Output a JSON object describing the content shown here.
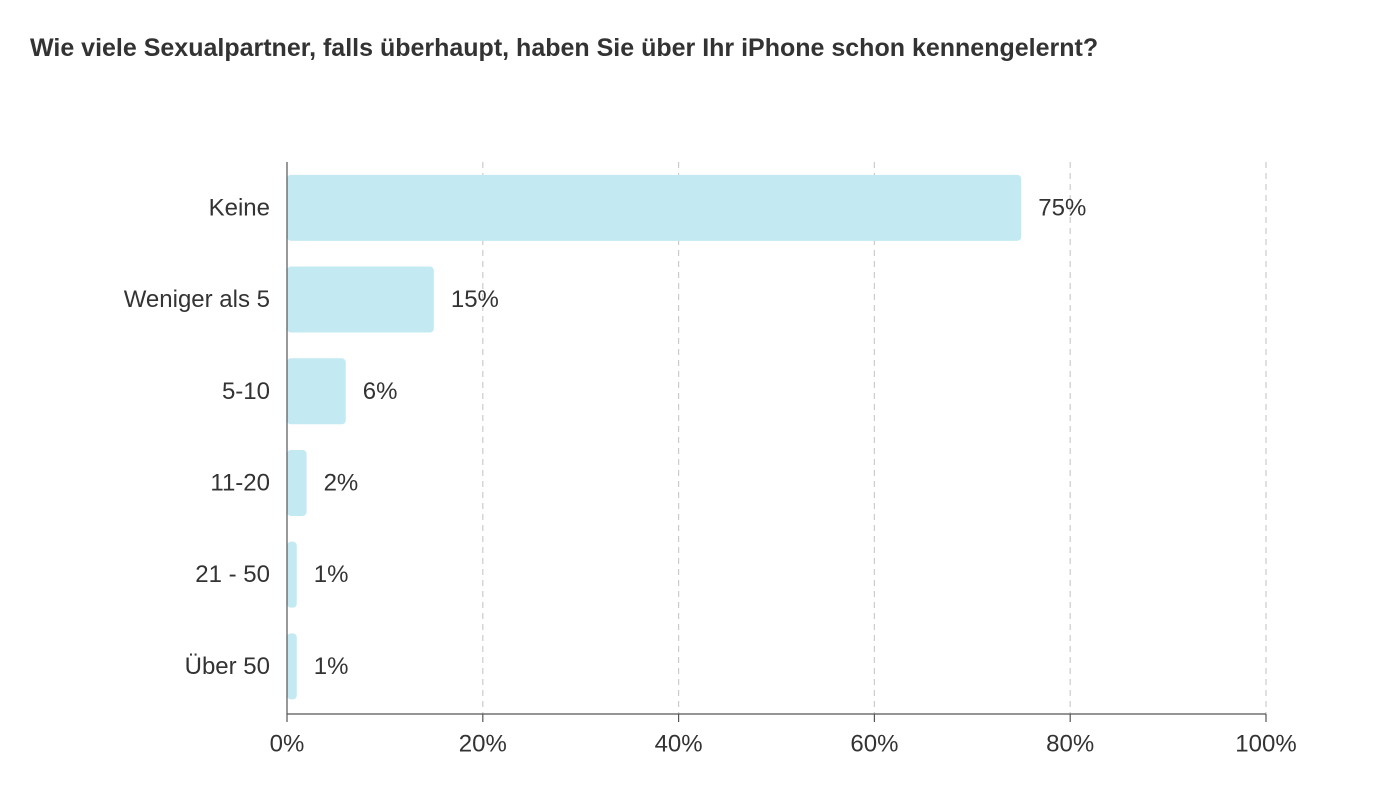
{
  "chart_data": {
    "type": "bar",
    "orientation": "horizontal",
    "title": "Wie viele Sexualpartner, falls überhaupt, haben Sie über Ihr iPhone schon kennengelernt?",
    "categories": [
      "Keine",
      "Weniger als 5",
      "5-10",
      "11-20",
      "21 - 50",
      "Über 50"
    ],
    "values": [
      75,
      15,
      6,
      2,
      1,
      1
    ],
    "value_labels": [
      "75%",
      "15%",
      "6%",
      "2%",
      "1%",
      "1%"
    ],
    "xlim": [
      0,
      100
    ],
    "xticks": [
      0,
      20,
      40,
      60,
      80,
      100
    ],
    "xtick_labels": [
      "0%",
      "20%",
      "40%",
      "60%",
      "80%",
      "100%"
    ],
    "xlabel": "",
    "ylabel": "",
    "grid": "vertical-dashed",
    "legend": "none",
    "colors": {
      "bar": "#c3e9f2",
      "grid": "#cccccc",
      "axis": "#555555",
      "text": "#333333"
    }
  }
}
